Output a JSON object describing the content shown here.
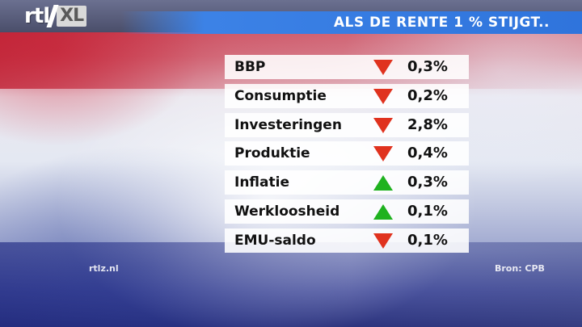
{
  "header": {
    "logo_text": "rtl",
    "logo_suffix": "XL",
    "title": "ALS DE RENTE 1 % STIJGT.."
  },
  "rows": [
    {
      "label": "BBP",
      "direction": "down",
      "value": "0,3%"
    },
    {
      "label": "Consumptie",
      "direction": "down",
      "value": "0,2%"
    },
    {
      "label": "Investeringen",
      "direction": "down",
      "value": "2,8%"
    },
    {
      "label": "Produktie",
      "direction": "down",
      "value": "0,4%"
    },
    {
      "label": "Inflatie",
      "direction": "up",
      "value": "0,3%"
    },
    {
      "label": "Werkloosheid",
      "direction": "up",
      "value": "0,1%"
    },
    {
      "label": "EMU-saldo",
      "direction": "down",
      "value": "0,1%"
    }
  ],
  "footer": {
    "site": "rtlz.nl",
    "source": "Bron: CPB"
  },
  "colors": {
    "down_arrow": "#e0321e",
    "up_arrow": "#1fb21f",
    "title_bar": "#2f74dc"
  },
  "icons": {
    "down": "arrow-down-icon",
    "up": "arrow-up-icon"
  }
}
